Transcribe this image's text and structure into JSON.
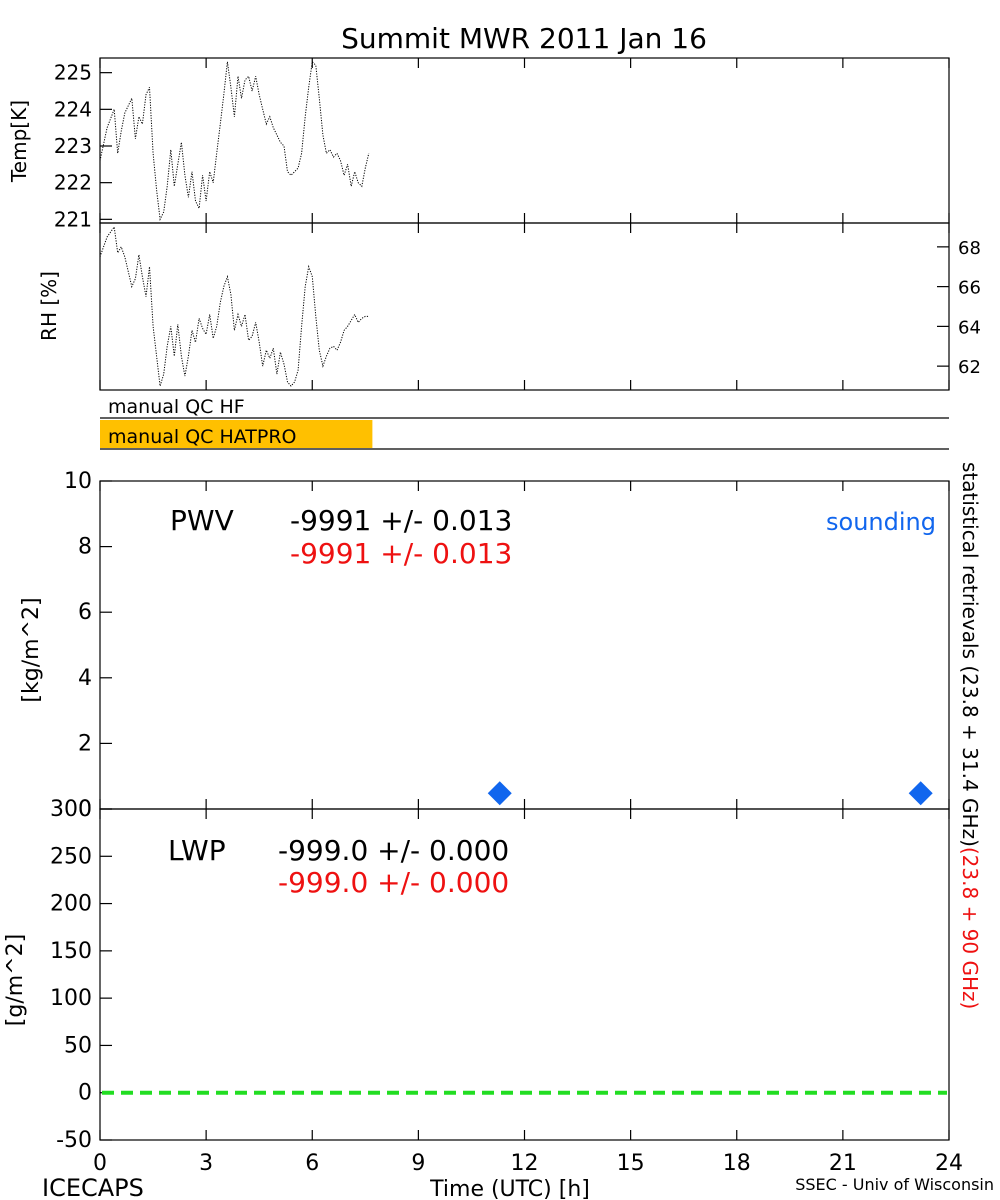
{
  "title": "Summit MWR 2011 Jan 16",
  "footer": {
    "left": "ICECAPS",
    "center": "Time (UTC) [h]",
    "right": "SSEC - Univ of Wisconsin"
  },
  "side_label": {
    "black": "statistical retrievals (23.8 + 31.4 GHz)",
    "red": "(23.8 + 90 GHz)"
  },
  "colors": {
    "qc_bar": "#ffc000",
    "red_text": "#ee1111",
    "sounding": "#1166ee",
    "zero_line": "#22dd22"
  },
  "qc": {
    "hf_label": "manual QC HF",
    "hatpro_label": "manual QC HATPRO",
    "hatpro_flag_end_hour": 7.7
  },
  "chart_data": [
    {
      "id": "temp",
      "type": "line",
      "ylabel": "Temp[K]",
      "xlim": [
        0,
        24
      ],
      "ylim": [
        220.9,
        225.4
      ],
      "yticks": [
        221,
        222,
        223,
        224,
        225
      ],
      "x": [
        0,
        0.2,
        0.4,
        0.5,
        0.6,
        0.7,
        0.9,
        1.0,
        1.1,
        1.2,
        1.3,
        1.4,
        1.5,
        1.6,
        1.7,
        1.8,
        1.9,
        2.0,
        2.1,
        2.2,
        2.3,
        2.4,
        2.5,
        2.6,
        2.7,
        2.8,
        2.9,
        3.0,
        3.1,
        3.2,
        3.3,
        3.4,
        3.5,
        3.6,
        3.7,
        3.8,
        3.9,
        4.0,
        4.1,
        4.2,
        4.3,
        4.4,
        4.5,
        4.6,
        4.7,
        4.8,
        4.9,
        5.0,
        5.1,
        5.2,
        5.3,
        5.4,
        5.5,
        5.6,
        5.7,
        5.8,
        5.9,
        6.0,
        6.1,
        6.2,
        6.3,
        6.4,
        6.5,
        6.6,
        6.7,
        6.8,
        6.9,
        7.0,
        7.1,
        7.2,
        7.3,
        7.4,
        7.5,
        7.6
      ],
      "y": [
        222.6,
        223.5,
        224.0,
        222.8,
        223.4,
        223.9,
        224.3,
        223.2,
        223.8,
        223.6,
        224.4,
        224.6,
        222.8,
        221.8,
        221.0,
        221.2,
        221.9,
        222.9,
        221.9,
        222.5,
        223.1,
        222.2,
        221.6,
        222.3,
        221.5,
        221.3,
        222.2,
        221.5,
        222.3,
        222.0,
        222.8,
        223.6,
        224.4,
        225.3,
        224.6,
        223.8,
        224.9,
        224.3,
        224.8,
        224.9,
        224.5,
        224.9,
        224.4,
        224.0,
        223.6,
        223.8,
        223.5,
        223.3,
        223.1,
        223.0,
        222.3,
        222.2,
        222.3,
        222.4,
        222.8,
        223.8,
        224.6,
        225.3,
        225.2,
        224.3,
        223.3,
        222.8,
        222.9,
        222.7,
        222.8,
        222.6,
        222.2,
        222.5,
        221.9,
        222.3,
        222.0,
        221.9,
        222.4,
        222.8
      ]
    },
    {
      "id": "rh",
      "type": "line",
      "ylabel": "RH [%]",
      "xlim": [
        0,
        24
      ],
      "ylim": [
        60.8,
        69.2
      ],
      "yticks": [
        62,
        64,
        66,
        68
      ],
      "x": [
        0,
        0.2,
        0.4,
        0.5,
        0.6,
        0.7,
        0.9,
        1.0,
        1.1,
        1.2,
        1.3,
        1.4,
        1.5,
        1.6,
        1.7,
        1.8,
        1.9,
        2.0,
        2.1,
        2.2,
        2.3,
        2.4,
        2.5,
        2.6,
        2.7,
        2.8,
        2.9,
        3.0,
        3.1,
        3.2,
        3.3,
        3.4,
        3.5,
        3.6,
        3.7,
        3.8,
        3.9,
        4.0,
        4.1,
        4.2,
        4.3,
        4.4,
        4.5,
        4.6,
        4.7,
        4.8,
        4.9,
        5.0,
        5.1,
        5.2,
        5.3,
        5.4,
        5.5,
        5.6,
        5.7,
        5.8,
        5.9,
        6.0,
        6.1,
        6.2,
        6.3,
        6.4,
        6.5,
        6.6,
        6.7,
        6.8,
        6.9,
        7.0,
        7.1,
        7.2,
        7.3,
        7.4,
        7.5,
        7.6
      ],
      "y": [
        67.5,
        68.5,
        69.0,
        67.7,
        68.0,
        67.5,
        66.0,
        66.4,
        67.6,
        66.5,
        65.5,
        67.0,
        64.0,
        62.5,
        61.0,
        61.6,
        63.0,
        64.0,
        62.5,
        64.1,
        62.5,
        61.5,
        62.5,
        63.8,
        63.2,
        64.4,
        63.9,
        63.6,
        64.6,
        63.4,
        64.0,
        65.2,
        66.0,
        66.5,
        65.6,
        63.8,
        64.6,
        64.0,
        64.6,
        63.3,
        63.5,
        64.2,
        63.2,
        62.0,
        62.8,
        62.4,
        62.9,
        61.6,
        62.7,
        62.1,
        61.2,
        61.0,
        61.2,
        61.8,
        64.0,
        66.0,
        67.0,
        66.5,
        64.5,
        62.8,
        62.0,
        62.5,
        62.9,
        63.0,
        62.8,
        63.2,
        63.8,
        64.0,
        64.3,
        64.6,
        64.2,
        64.4,
        64.5,
        64.5
      ]
    },
    {
      "id": "pwv",
      "type": "scatter",
      "title": "PWV",
      "ylabel": "[kg/m^2]",
      "xlim": [
        0,
        24
      ],
      "ylim": [
        0,
        10
      ],
      "yticks": [
        0,
        2,
        4,
        6,
        8,
        10
      ],
      "value_black": "-9991 +/- 0.013",
      "value_red": "-9991 +/- 0.013",
      "legend": "sounding",
      "sounding": {
        "x": [
          11.3,
          23.2
        ],
        "y": [
          0.48,
          0.48
        ]
      }
    },
    {
      "id": "lwp",
      "type": "line",
      "title": "LWP",
      "ylabel": "[g/m^2]",
      "xlim": [
        0,
        24
      ],
      "ylim": [
        -50,
        300
      ],
      "yticks": [
        -50,
        0,
        50,
        100,
        150,
        200,
        250,
        300
      ],
      "value_black": "-999.0 +/-  0.000",
      "value_red": "-999.0 +/-  0.000",
      "zero_line": 0,
      "xticks": [
        0,
        3,
        6,
        9,
        12,
        15,
        18,
        21,
        24
      ]
    }
  ]
}
